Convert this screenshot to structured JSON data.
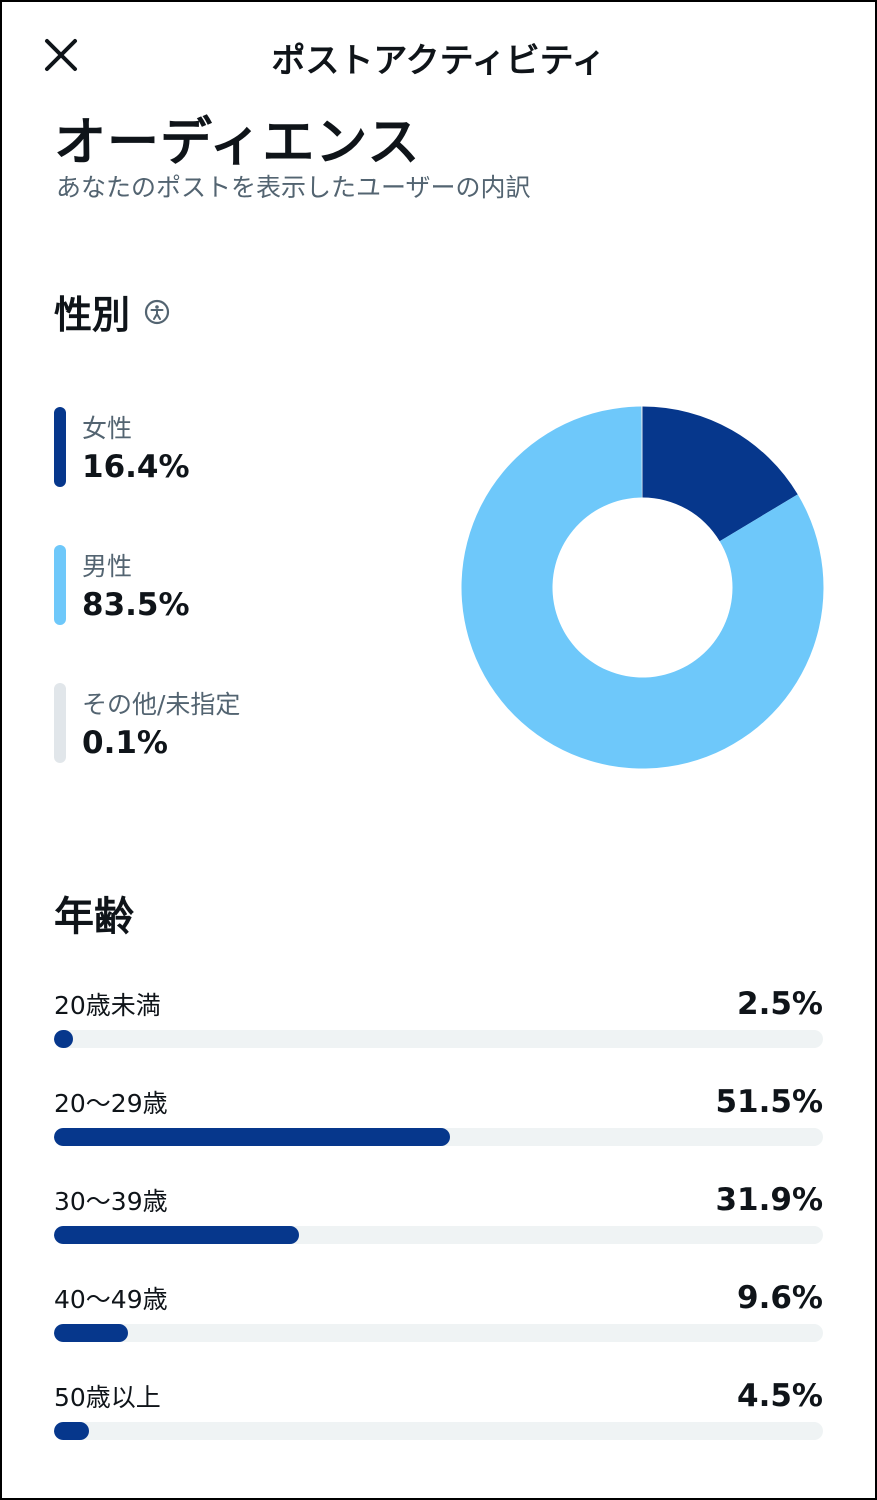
{
  "topbar": {
    "title": "ポストアクティビティ"
  },
  "audience": {
    "title": "オーディエンス",
    "subtitle": "あなたのポストを表示したユーザーの内訳"
  },
  "gender": {
    "heading": "性別",
    "info_icon": "accessibility-info-icon",
    "items": [
      {
        "label": "女性",
        "value": "16.4%",
        "percent": 16.4,
        "color": "#06378c"
      },
      {
        "label": "男性",
        "value": "83.5%",
        "percent": 83.5,
        "color": "#6ec8fa"
      },
      {
        "label": "その他/未指定",
        "value": "0.1%",
        "percent": 0.1,
        "color": "#e1e6ea"
      }
    ]
  },
  "age": {
    "heading": "年齢",
    "bar_color": "#06378c",
    "track_color": "#eff3f4",
    "items": [
      {
        "label": "20歳未満",
        "value": "2.5%",
        "percent": 2.5
      },
      {
        "label": "20〜29歳",
        "value": "51.5%",
        "percent": 51.5
      },
      {
        "label": "30〜39歳",
        "value": "31.9%",
        "percent": 31.9
      },
      {
        "label": "40〜49歳",
        "value": "9.6%",
        "percent": 9.6
      },
      {
        "label": "50歳以上",
        "value": "4.5%",
        "percent": 4.5
      }
    ]
  }
}
